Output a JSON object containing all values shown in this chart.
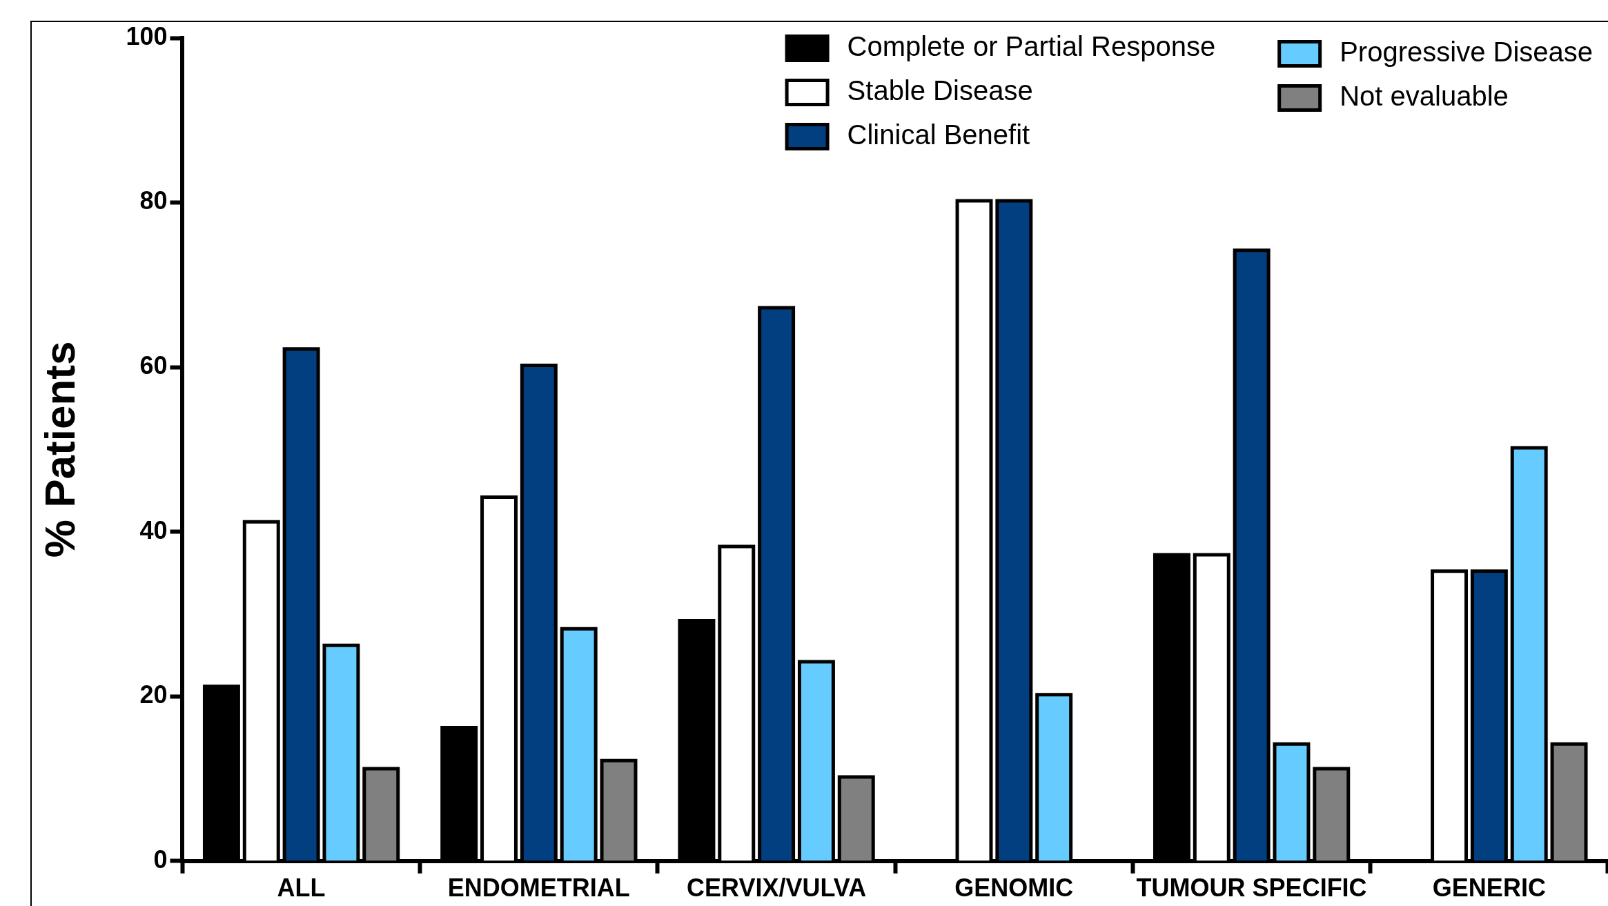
{
  "chart_data": {
    "type": "bar",
    "ylabel": "% Patients",
    "categories": [
      "ALL",
      "ENDOMETRIAL",
      "CERVIX/VULVA",
      "GENOMIC",
      "TUMOUR SPECIFIC",
      "GENERIC"
    ],
    "series": [
      {
        "name": "Complete or Partial Response",
        "color": "#000000",
        "values": [
          21,
          16,
          29,
          0,
          37,
          0
        ]
      },
      {
        "name": "Stable Disease",
        "color": "#ffffff",
        "values": [
          41,
          44,
          38,
          80,
          37,
          35
        ]
      },
      {
        "name": "Clinical Benefit",
        "color": "#023f80",
        "values": [
          62,
          60,
          67,
          80,
          74,
          35
        ]
      },
      {
        "name": "Progressive Disease",
        "color": "#66ccff",
        "values": [
          26,
          28,
          24,
          20,
          14,
          50
        ]
      },
      {
        "name": "Not evaluable",
        "color": "#808080",
        "values": [
          11,
          12,
          10,
          0,
          11,
          14
        ]
      }
    ],
    "ylim": [
      0,
      100
    ],
    "yticks": [
      0,
      20,
      40,
      60,
      80,
      100
    ],
    "grid": false,
    "legend": "top right"
  }
}
